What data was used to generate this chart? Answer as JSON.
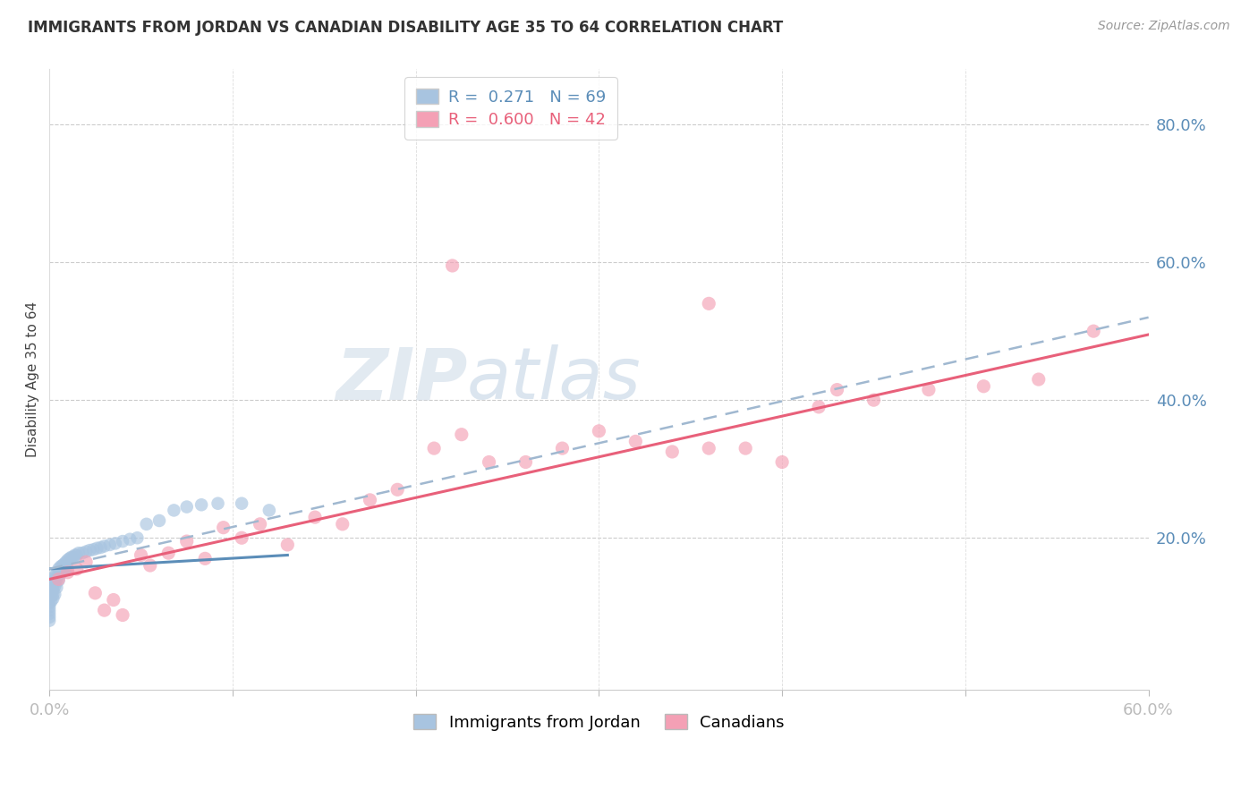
{
  "title": "IMMIGRANTS FROM JORDAN VS CANADIAN DISABILITY AGE 35 TO 64 CORRELATION CHART",
  "source": "Source: ZipAtlas.com",
  "ylabel": "Disability Age 35 to 64",
  "xlim": [
    0.0,
    0.6
  ],
  "ylim": [
    -0.02,
    0.88
  ],
  "yticks_right": [
    0.2,
    0.4,
    0.6,
    0.8
  ],
  "ytick_labels_right": [
    "20.0%",
    "40.0%",
    "60.0%",
    "80.0%"
  ],
  "blue_color": "#a8c4e0",
  "pink_color": "#f4a0b5",
  "blue_line_color": "#5b8db8",
  "pink_line_color": "#e8607a",
  "dashed_line_color": "#a0b8d0",
  "watermark_zip": "ZIP",
  "watermark_atlas": "atlas",
  "jordan_x": [
    0.0,
    0.0,
    0.0,
    0.0,
    0.0,
    0.0,
    0.0,
    0.0,
    0.0,
    0.0,
    0.0,
    0.0,
    0.001,
    0.001,
    0.001,
    0.001,
    0.001,
    0.001,
    0.002,
    0.002,
    0.002,
    0.002,
    0.002,
    0.003,
    0.003,
    0.003,
    0.003,
    0.004,
    0.004,
    0.004,
    0.005,
    0.005,
    0.005,
    0.006,
    0.006,
    0.007,
    0.007,
    0.008,
    0.008,
    0.009,
    0.009,
    0.01,
    0.01,
    0.011,
    0.012,
    0.013,
    0.014,
    0.015,
    0.016,
    0.018,
    0.02,
    0.022,
    0.024,
    0.026,
    0.028,
    0.03,
    0.033,
    0.036,
    0.04,
    0.044,
    0.048,
    0.053,
    0.06,
    0.068,
    0.075,
    0.083,
    0.092,
    0.105,
    0.12
  ],
  "jordan_y": [
    0.13,
    0.135,
    0.12,
    0.115,
    0.125,
    0.13,
    0.105,
    0.1,
    0.095,
    0.09,
    0.085,
    0.08,
    0.135,
    0.14,
    0.125,
    0.12,
    0.115,
    0.108,
    0.138,
    0.13,
    0.125,
    0.118,
    0.112,
    0.145,
    0.138,
    0.13,
    0.118,
    0.148,
    0.14,
    0.128,
    0.155,
    0.148,
    0.138,
    0.158,
    0.148,
    0.16,
    0.15,
    0.162,
    0.152,
    0.165,
    0.155,
    0.168,
    0.155,
    0.17,
    0.172,
    0.172,
    0.175,
    0.175,
    0.178,
    0.178,
    0.18,
    0.182,
    0.183,
    0.185,
    0.186,
    0.188,
    0.19,
    0.192,
    0.195,
    0.198,
    0.2,
    0.22,
    0.225,
    0.24,
    0.245,
    0.248,
    0.25,
    0.25,
    0.24
  ],
  "canadian_x": [
    0.005,
    0.01,
    0.015,
    0.02,
    0.025,
    0.03,
    0.035,
    0.04,
    0.05,
    0.055,
    0.065,
    0.075,
    0.085,
    0.095,
    0.105,
    0.115,
    0.13,
    0.145,
    0.16,
    0.175,
    0.19,
    0.21,
    0.225,
    0.24,
    0.26,
    0.28,
    0.3,
    0.32,
    0.34,
    0.36,
    0.38,
    0.4,
    0.42,
    0.45,
    0.48,
    0.51,
    0.54,
    0.57,
    0.22,
    0.36,
    0.43
  ],
  "canadian_y": [
    0.14,
    0.15,
    0.155,
    0.165,
    0.12,
    0.095,
    0.11,
    0.088,
    0.175,
    0.16,
    0.178,
    0.195,
    0.17,
    0.215,
    0.2,
    0.22,
    0.19,
    0.23,
    0.22,
    0.255,
    0.27,
    0.33,
    0.35,
    0.31,
    0.31,
    0.33,
    0.355,
    0.34,
    0.325,
    0.33,
    0.33,
    0.31,
    0.39,
    0.4,
    0.415,
    0.42,
    0.43,
    0.5,
    0.595,
    0.54,
    0.415
  ],
  "blue_trend_x0": 0.0,
  "blue_trend_y0": 0.155,
  "blue_trend_x1": 0.13,
  "blue_trend_y1": 0.175,
  "pink_trend_x0": 0.0,
  "pink_trend_y0": 0.14,
  "pink_trend_x1": 0.6,
  "pink_trend_y1": 0.495,
  "dash_trend_x0": 0.0,
  "dash_trend_y0": 0.155,
  "dash_trend_x1": 0.6,
  "dash_trend_y1": 0.52
}
